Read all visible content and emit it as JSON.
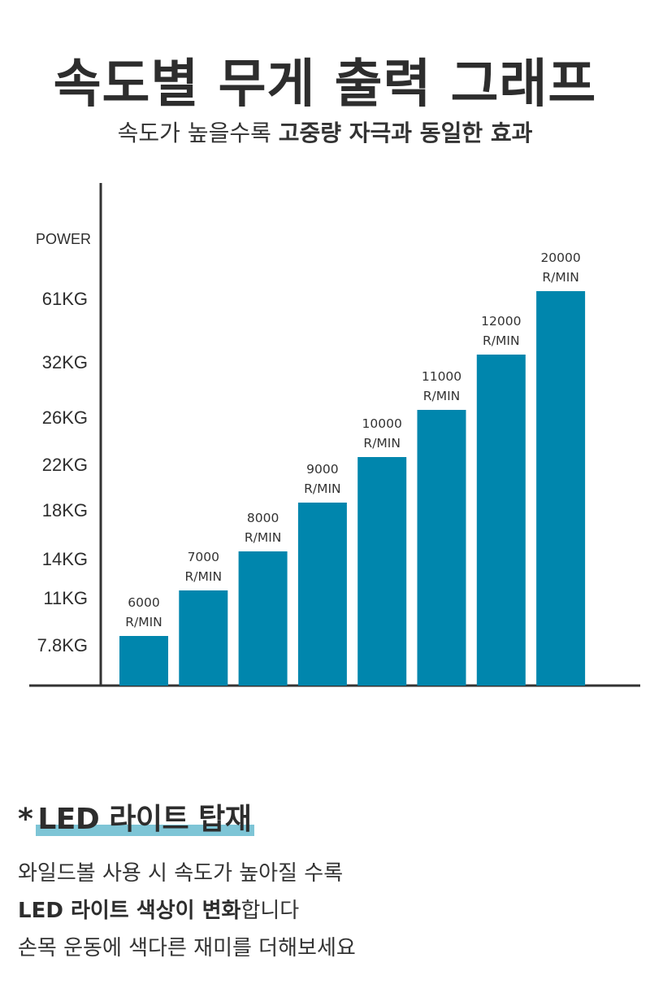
{
  "title": "속도별 무게 출력 그래프",
  "subtitle": {
    "plain": "속도가 높을수록 ",
    "bold": "고중량 자극과 동일한 효과"
  },
  "chart_data": {
    "type": "bar",
    "ylabel": "POWER",
    "yticks": [
      "61KG",
      "32KG",
      "26KG",
      "22KG",
      "18KG",
      "14KG",
      "11KG",
      "7.8KG"
    ],
    "categories": [
      "6000 R/MIN",
      "7000 R/MIN",
      "8000 R/MIN",
      "9000 R/MIN",
      "10000 R/MIN",
      "11000 R/MIN",
      "12000 R/MIN",
      "20000 R/MIN"
    ],
    "bar_labels": [
      [
        "6000",
        "R/MIN"
      ],
      [
        "7000",
        "R/MIN"
      ],
      [
        "8000",
        "R/MIN"
      ],
      [
        "9000",
        "R/MIN"
      ],
      [
        "10000",
        "R/MIN"
      ],
      [
        "11000",
        "R/MIN"
      ],
      [
        "12000",
        "R/MIN"
      ],
      [
        "20000",
        "R/MIN"
      ]
    ],
    "values_kg": [
      7.8,
      11,
      14,
      18,
      22,
      26,
      32,
      61
    ],
    "bar_color": "#0086ad",
    "grid": false,
    "legend": "none"
  },
  "led": {
    "star": "*",
    "heading": "LED 라이트 탑재",
    "line1": "와일드볼 사용 시 속도가 높아질 수록",
    "line2_bold": "LED 라이트 색상이 변화",
    "line2_rest": "합니다",
    "line3": "손목 운동에 색다른 재미를 더해보세요"
  },
  "colors": {
    "accent": "#0086ad",
    "highlight": "#7ec5d6",
    "text": "#2d2d2d"
  }
}
